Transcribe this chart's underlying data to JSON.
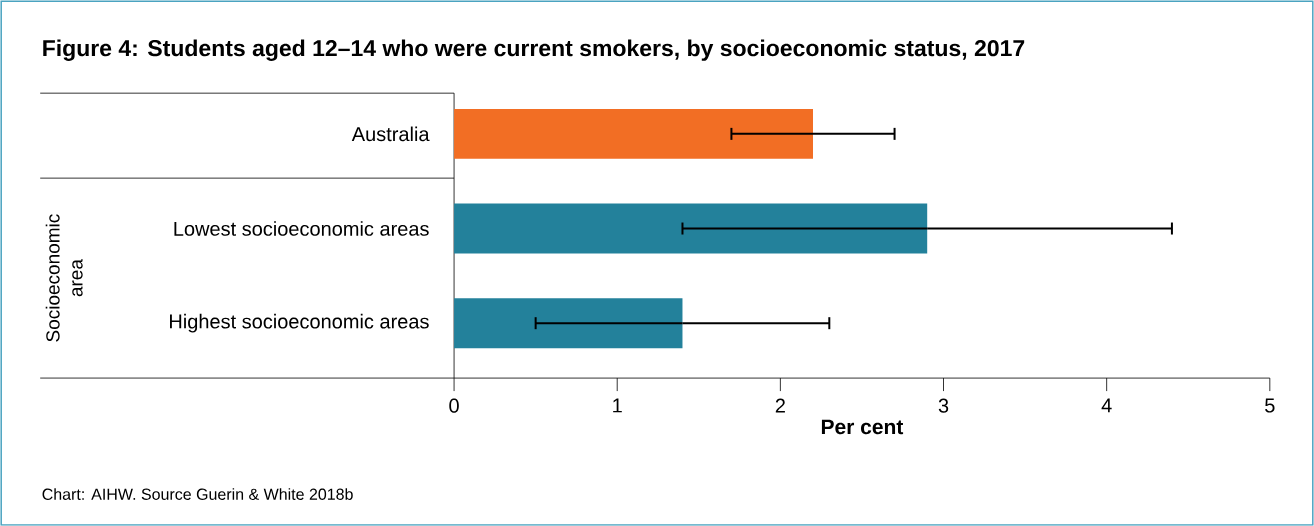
{
  "chart_data": {
    "type": "bar",
    "orientation": "horizontal",
    "title": "Figure 4: Students aged 12–14 who were current smokers, by socioeconomic status, 2017",
    "xlabel": "Per cent",
    "categories": [
      "Australia",
      "Lowest socioeconomic areas",
      "Highest socioeconomic areas"
    ],
    "values": [
      2.2,
      2.9,
      1.4
    ],
    "colors": [
      "#f26e24",
      "#23819b",
      "#23819b"
    ],
    "errors": [
      [
        1.7,
        2.7
      ],
      [
        1.4,
        4.4
      ],
      [
        0.5,
        2.3
      ]
    ],
    "xlim": [
      0,
      5
    ],
    "xticks": [
      0,
      1,
      2,
      3,
      4,
      5
    ],
    "annotations": [
      "Socioeconomic area",
      "Chart: AIHW. Source Guerin & White 2018b"
    ]
  }
}
